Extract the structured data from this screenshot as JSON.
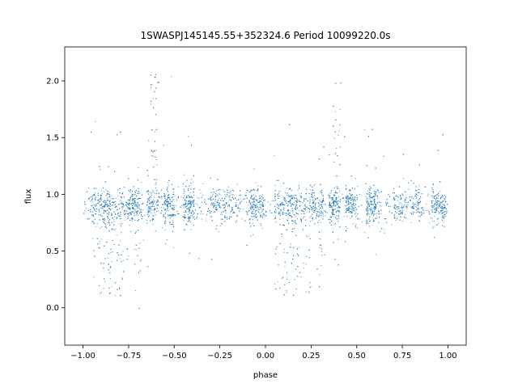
{
  "chart_data": {
    "type": "scatter",
    "title": "1SWASPJ145145.55+352324.6 Period 10099220.0s",
    "xlabel": "phase",
    "ylabel": "flux",
    "xlim": [
      -1.1,
      1.1
    ],
    "ylim": [
      -0.33,
      2.3
    ],
    "x_ticks": [
      -1.0,
      -0.75,
      -0.5,
      -0.25,
      0.0,
      0.25,
      0.5,
      0.75,
      1.0
    ],
    "x_tick_labels": [
      "−1.00",
      "−0.75",
      "−0.50",
      "−0.25",
      "0.00",
      "0.25",
      "0.50",
      "0.75",
      "1.00"
    ],
    "y_ticks": [
      0.0,
      0.5,
      1.0,
      1.5,
      2.0
    ],
    "y_tick_labels": [
      "0.0",
      "0.5",
      "1.0",
      "1.5",
      "2.0"
    ],
    "grid": false,
    "legend": "none",
    "point_color": "#1f77b4",
    "series": [
      {
        "baseline_flux": 0.9,
        "phase_density_clusters": [
          {
            "center": -0.9,
            "halfwidth": 0.05
          },
          {
            "center": -0.82,
            "halfwidth": 0.05
          },
          {
            "center": -0.72,
            "halfwidth": 0.04
          },
          {
            "center": -0.62,
            "halfwidth": 0.03
          },
          {
            "center": -0.53,
            "halfwidth": 0.03
          },
          {
            "center": -0.42,
            "halfwidth": 0.03
          },
          {
            "center": -0.22,
            "halfwidth": 0.08
          },
          {
            "center": -0.05,
            "halfwidth": 0.04
          },
          {
            "center": 0.1,
            "halfwidth": 0.05
          },
          {
            "center": 0.18,
            "halfwidth": 0.05
          },
          {
            "center": 0.28,
            "halfwidth": 0.04
          },
          {
            "center": 0.38,
            "halfwidth": 0.03
          },
          {
            "center": 0.47,
            "halfwidth": 0.03
          },
          {
            "center": 0.58,
            "halfwidth": 0.03
          },
          {
            "center": 0.78,
            "halfwidth": 0.08
          },
          {
            "center": 0.95,
            "halfwidth": 0.04
          }
        ],
        "dip_ranges": [
          {
            "from": -0.95,
            "to": -0.75,
            "min_flux": 0.1
          },
          {
            "from": -0.72,
            "to": -0.65,
            "min_flux": 0.15
          },
          {
            "from": 0.05,
            "to": 0.25,
            "min_flux": 0.1
          },
          {
            "from": 0.28,
            "to": 0.35,
            "min_flux": 0.15
          }
        ],
        "flare_ranges": [
          {
            "from": -0.63,
            "to": -0.58,
            "max_flux": 2.1
          },
          {
            "from": 0.37,
            "to": 0.42,
            "max_flux": 2.1
          }
        ]
      }
    ]
  }
}
